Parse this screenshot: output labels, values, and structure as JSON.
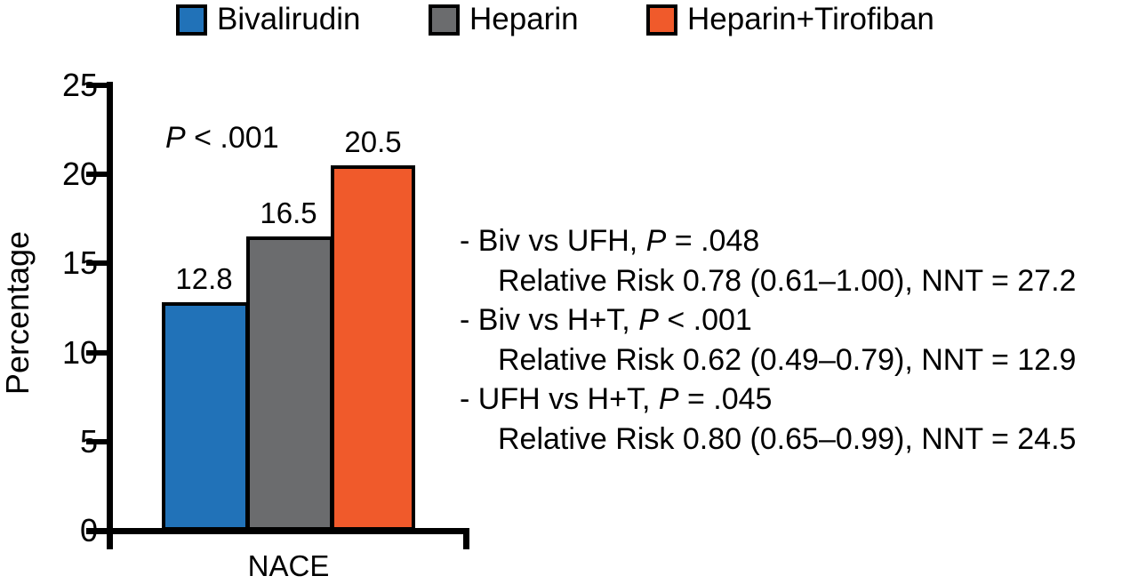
{
  "legend": {
    "items": [
      {
        "label": "Bivalirudin",
        "color": "#2172B8"
      },
      {
        "label": "Heparin",
        "color": "#6B6C6E"
      },
      {
        "label": "Heparin+Tirofiban",
        "color": "#F05A2B"
      }
    ]
  },
  "chart_data": {
    "type": "bar",
    "categories": [
      "NACE"
    ],
    "series": [
      {
        "name": "Bivalirudin",
        "values": [
          12.8
        ],
        "color": "#2172B8"
      },
      {
        "name": "Heparin",
        "values": [
          16.5
        ],
        "color": "#6B6C6E"
      },
      {
        "name": "Heparin+Tirofiban",
        "values": [
          20.5
        ],
        "color": "#F05A2B"
      }
    ],
    "bar_labels": [
      "12.8",
      "16.5",
      "20.5"
    ],
    "title": "",
    "xlabel": "NACE",
    "ylabel": "Percentage",
    "ylim": [
      0,
      25
    ],
    "yticks": [
      0,
      5,
      10,
      15,
      20,
      25
    ],
    "grid": false,
    "legend_position": "top",
    "annotation": "P < .001"
  },
  "axes": {
    "y_label": "Percentage",
    "x_label": "NACE",
    "y_ticks": [
      "25",
      "20",
      "15",
      "10",
      "5",
      "0"
    ]
  },
  "annotations": {
    "p_italic": "P",
    "p_rest": " < .001"
  },
  "stats_notes": {
    "lines": [
      {
        "prefix": "- Biv vs UFH, ",
        "p": "P",
        "suffix": " = .048"
      },
      {
        "text": "Relative Risk 0.78 (0.61–1.00), NNT = 27.2"
      },
      {
        "prefix": "- Biv vs H+T, ",
        "p": "P",
        "suffix": " < .001"
      },
      {
        "text": "Relative Risk 0.62 (0.49–0.79), NNT = 12.9"
      },
      {
        "prefix": "- UFH vs H+T, ",
        "p": "P",
        "suffix": " = .045"
      },
      {
        "text": "Relative Risk 0.80 (0.65–0.99), NNT = 24.5"
      }
    ]
  }
}
